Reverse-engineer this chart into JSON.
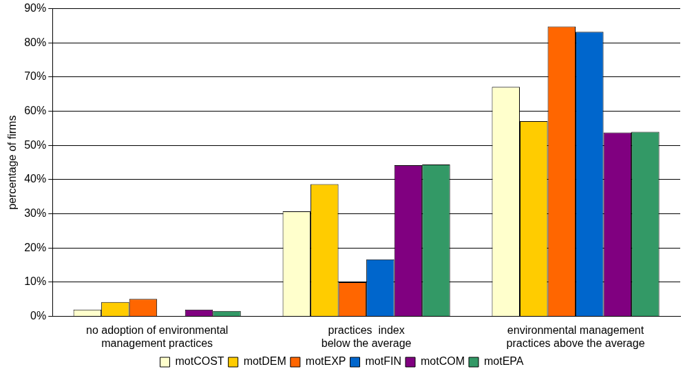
{
  "chart_data": {
    "type": "bar",
    "ylabel": "percentage of firms",
    "categories": [
      "no adoption of environmental management practices",
      "practices  index below the average",
      "environmental management practices above the average"
    ],
    "series": [
      {
        "name": "motCOST",
        "color": "#ffffcc",
        "values": [
          2,
          30.7,
          67.1
        ]
      },
      {
        "name": "motDEM",
        "color": "#ffcc00",
        "values": [
          4.2,
          38.7,
          57.1
        ]
      },
      {
        "name": "motEXP",
        "color": "#ff6600",
        "values": [
          5.1,
          10,
          84.8
        ]
      },
      {
        "name": "motFIN",
        "color": "#0066cc",
        "values": [
          0,
          16.7,
          83.2
        ]
      },
      {
        "name": "motCOM",
        "color": "#800080",
        "values": [
          2,
          44.2,
          53.8
        ]
      },
      {
        "name": "motEPA",
        "color": "#339966",
        "values": [
          1.6,
          44.4,
          54
        ]
      }
    ],
    "ylim": [
      0,
      90
    ],
    "yticks": [
      {
        "value": 0,
        "label": "0%"
      },
      {
        "value": 10,
        "label": "10%"
      },
      {
        "value": 20,
        "label": "20%"
      },
      {
        "value": 30,
        "label": "30%"
      },
      {
        "value": 40,
        "label": "40%"
      },
      {
        "value": 50,
        "label": "50%"
      },
      {
        "value": 60,
        "label": "60%"
      },
      {
        "value": 70,
        "label": "70%"
      },
      {
        "value": 80,
        "label": "80%"
      },
      {
        "value": 90,
        "label": "90%"
      }
    ],
    "grid": "y",
    "legend": "bottom"
  }
}
